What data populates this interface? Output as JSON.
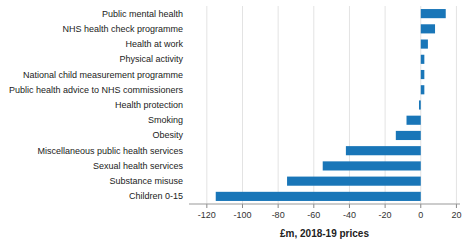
{
  "chart_data": {
    "type": "bar",
    "orientation": "horizontal",
    "categories": [
      "Children 0-15",
      "Substance misuse",
      "Sexual health services",
      "Miscellaneous public health services",
      "Obesity",
      "Smoking",
      "Health protection",
      "Public health advice to NHS commissioners",
      "National child measurement programme",
      "Physical activity",
      "Health at work",
      "NHS health check programme",
      "Public mental health"
    ],
    "values": [
      -115,
      -75,
      -55,
      -42,
      -14,
      -8,
      -1,
      2,
      2,
      2,
      4,
      8,
      14
    ],
    "color": "#1976b8",
    "xlabel": "£m, 2018-19 prices",
    "xlim": [
      -130,
      22
    ],
    "xticks": [
      -120,
      -100,
      -80,
      -60,
      -40,
      -20,
      0,
      20
    ],
    "grid": true
  }
}
